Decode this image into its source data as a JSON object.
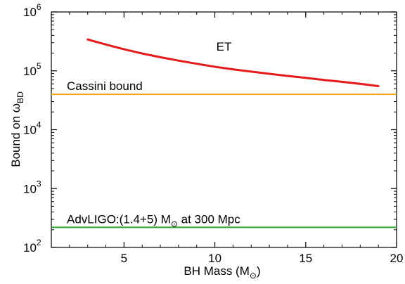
{
  "chart_data": {
    "type": "line",
    "xlabel": "BH Mass (M",
    "xlabel_sub": "⊙",
    "xlabel_close": ")",
    "ylabel": "Bound on ω",
    "ylabel_sub": "BD",
    "xlim": [
      1,
      20
    ],
    "ylim": [
      100,
      1000000
    ],
    "yscale": "log",
    "grid": false,
    "x_ticks": [
      5,
      10,
      15,
      20
    ],
    "y_ticks": [
      {
        "value": 100,
        "base": "10",
        "exp": "2"
      },
      {
        "value": 1000,
        "base": "10",
        "exp": "3"
      },
      {
        "value": 10000,
        "base": "10",
        "exp": "4"
      },
      {
        "value": 100000,
        "base": "10",
        "exp": "5"
      },
      {
        "value": 1000000,
        "base": "10",
        "exp": "6"
      }
    ],
    "series": [
      {
        "name": "ET",
        "color": "#e41a1c",
        "x": [
          3,
          4,
          5,
          6,
          7,
          8,
          9,
          10,
          11,
          12,
          13,
          14,
          15,
          16,
          17,
          18,
          19
        ],
        "y": [
          340000,
          280000,
          232000,
          197000,
          170000,
          149000,
          132000,
          117000,
          106000,
          97000,
          89000,
          82000,
          76000,
          70000,
          65000,
          60000,
          55000
        ]
      }
    ],
    "hlines": [
      {
        "label": "Cassini bound",
        "value": 40000,
        "color": "#f5a623"
      },
      {
        "label": "AdvLIGO:(1.4+5) M",
        "label_sub": "⊙",
        "label_tail": " at 300 Mpc",
        "value": 220,
        "color": "#2ca02c"
      }
    ],
    "annotations": [
      {
        "text": "ET",
        "x": 10.5,
        "y": 220000
      }
    ]
  }
}
